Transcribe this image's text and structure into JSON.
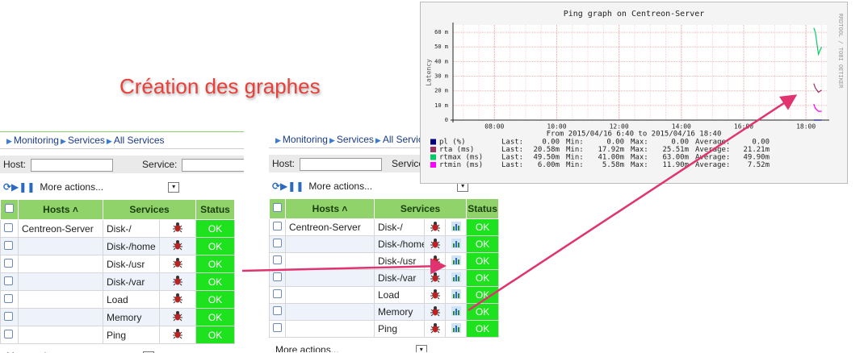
{
  "header": {
    "title": "Création des graphes"
  },
  "nav": {
    "breadcrumb": [
      "Monitoring",
      "Services",
      "All Services"
    ],
    "host_label": "Host:",
    "service_label": "Service:",
    "more_actions": "More actions..."
  },
  "table": {
    "columns": [
      "Hosts",
      "Services",
      "Status"
    ],
    "rows": [
      {
        "host": "Centreon-Server",
        "service": "Disk-/",
        "status": "OK"
      },
      {
        "service": "Disk-/home",
        "status": "OK"
      },
      {
        "service": "Disk-/usr",
        "status": "OK"
      },
      {
        "service": "Disk-/var",
        "status": "OK"
      },
      {
        "service": "Load",
        "status": "OK"
      },
      {
        "service": "Memory",
        "status": "OK"
      },
      {
        "service": "Ping",
        "status": "OK"
      }
    ]
  },
  "chart_data": {
    "type": "line",
    "title": "Ping graph on Centreon-Server",
    "subtitle": "From 2015/04/16 6:40 to 2015/04/16 18:40",
    "y_label": "Latency",
    "side_label": "RRDTOOL / TOBI OETIKER",
    "x": [
      18.25,
      18.3,
      18.4,
      18.5
    ],
    "xlim": [
      6.67,
      18.67
    ],
    "xticks": [
      {
        "value": 8,
        "label": "08:00"
      },
      {
        "value": 10,
        "label": "10:00"
      },
      {
        "value": 12,
        "label": "12:00"
      },
      {
        "value": 14,
        "label": "14:00"
      },
      {
        "value": 16,
        "label": "16:00"
      },
      {
        "value": 18,
        "label": "18:00"
      }
    ],
    "ylim": [
      0,
      65
    ],
    "yticks": [
      0,
      {
        "value": 10,
        "label": "10 m"
      },
      {
        "value": 20,
        "label": "20 m"
      },
      {
        "value": 30,
        "label": "30 m"
      },
      {
        "value": 40,
        "label": "40 m"
      },
      {
        "value": 50,
        "label": "50 m"
      },
      {
        "value": 60,
        "label": "60 m"
      }
    ],
    "grid": true,
    "legend_columns": [
      "Last:",
      "Min:",
      "Max:",
      "Average:"
    ],
    "series": [
      {
        "name": "pl (%)",
        "color": "#000080",
        "values": [
          0,
          0,
          0,
          0
        ],
        "stats": [
          "0.00",
          "0.00",
          "0.00",
          "0.00"
        ]
      },
      {
        "name": "rta (ms)",
        "color": "#993366",
        "values": [
          25,
          22,
          19,
          20.5
        ],
        "stats": [
          "20.58m",
          "17.92m",
          "25.51m",
          "21.21m"
        ]
      },
      {
        "name": "rtmax (ms)",
        "color": "#00cc66",
        "values": [
          63,
          60,
          45,
          50
        ],
        "stats": [
          "49.50m",
          "41.00m",
          "63.00m",
          "49.90m"
        ]
      },
      {
        "name": "rtmin (ms)",
        "color": "#ff00ff",
        "values": [
          11,
          8,
          6,
          6
        ],
        "stats": [
          "6.00m",
          "5.58m",
          "11.90m",
          "7.52m"
        ]
      }
    ]
  }
}
